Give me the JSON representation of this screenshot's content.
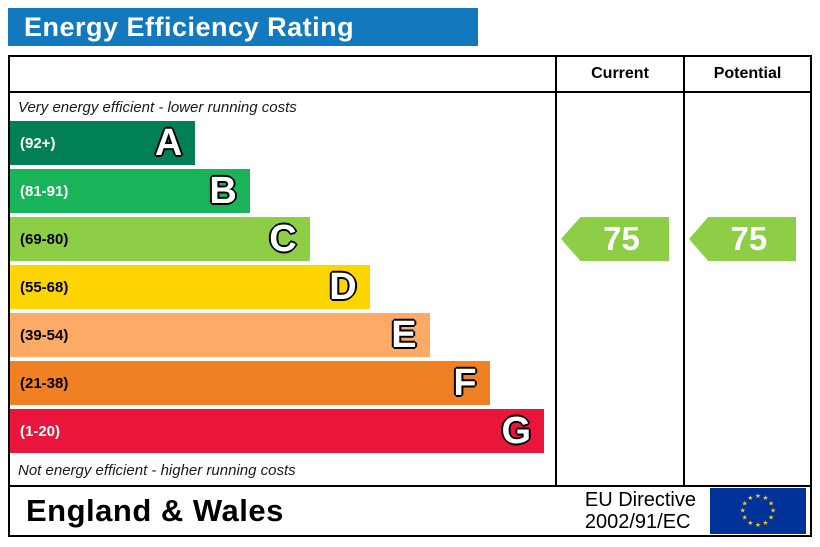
{
  "title": "Energy Efficiency Rating",
  "title_bg": "#1279be",
  "columns": {
    "current": "Current",
    "potential": "Potential"
  },
  "chart_data": {
    "type": "bar",
    "title": "Energy Efficiency Rating",
    "top_note": "Very energy efficient - lower running costs",
    "bottom_note": "Not energy efficient - higher running costs",
    "scale_range": [
      1,
      100
    ],
    "bands": [
      {
        "letter": "A",
        "range": "(92+)",
        "color": "#008054",
        "text_color": "#ffffff",
        "width_pct": 34
      },
      {
        "letter": "B",
        "range": "(81-91)",
        "color": "#19b459",
        "text_color": "#ffffff",
        "width_pct": 44
      },
      {
        "letter": "C",
        "range": "(69-80)",
        "color": "#8dce46",
        "text_color": "#000000",
        "width_pct": 55
      },
      {
        "letter": "D",
        "range": "(55-68)",
        "color": "#ffd500",
        "text_color": "#000000",
        "width_pct": 66
      },
      {
        "letter": "E",
        "range": "(39-54)",
        "color": "#fcaa65",
        "text_color": "#000000",
        "width_pct": 77
      },
      {
        "letter": "F",
        "range": "(21-38)",
        "color": "#ef8023",
        "text_color": "#000000",
        "width_pct": 88
      },
      {
        "letter": "G",
        "range": "(1-20)",
        "color": "#e9153b",
        "text_color": "#ffffff",
        "width_pct": 98
      }
    ],
    "current": {
      "value": 75,
      "band": "C",
      "color": "#8dce46"
    },
    "potential": {
      "value": 75,
      "band": "C",
      "color": "#8dce46"
    }
  },
  "footer": {
    "region": "England & Wales",
    "directive": [
      "EU Directive",
      "2002/91/EC"
    ],
    "eu_flag_bg": "#003399",
    "eu_star_color": "#ffcc00"
  }
}
